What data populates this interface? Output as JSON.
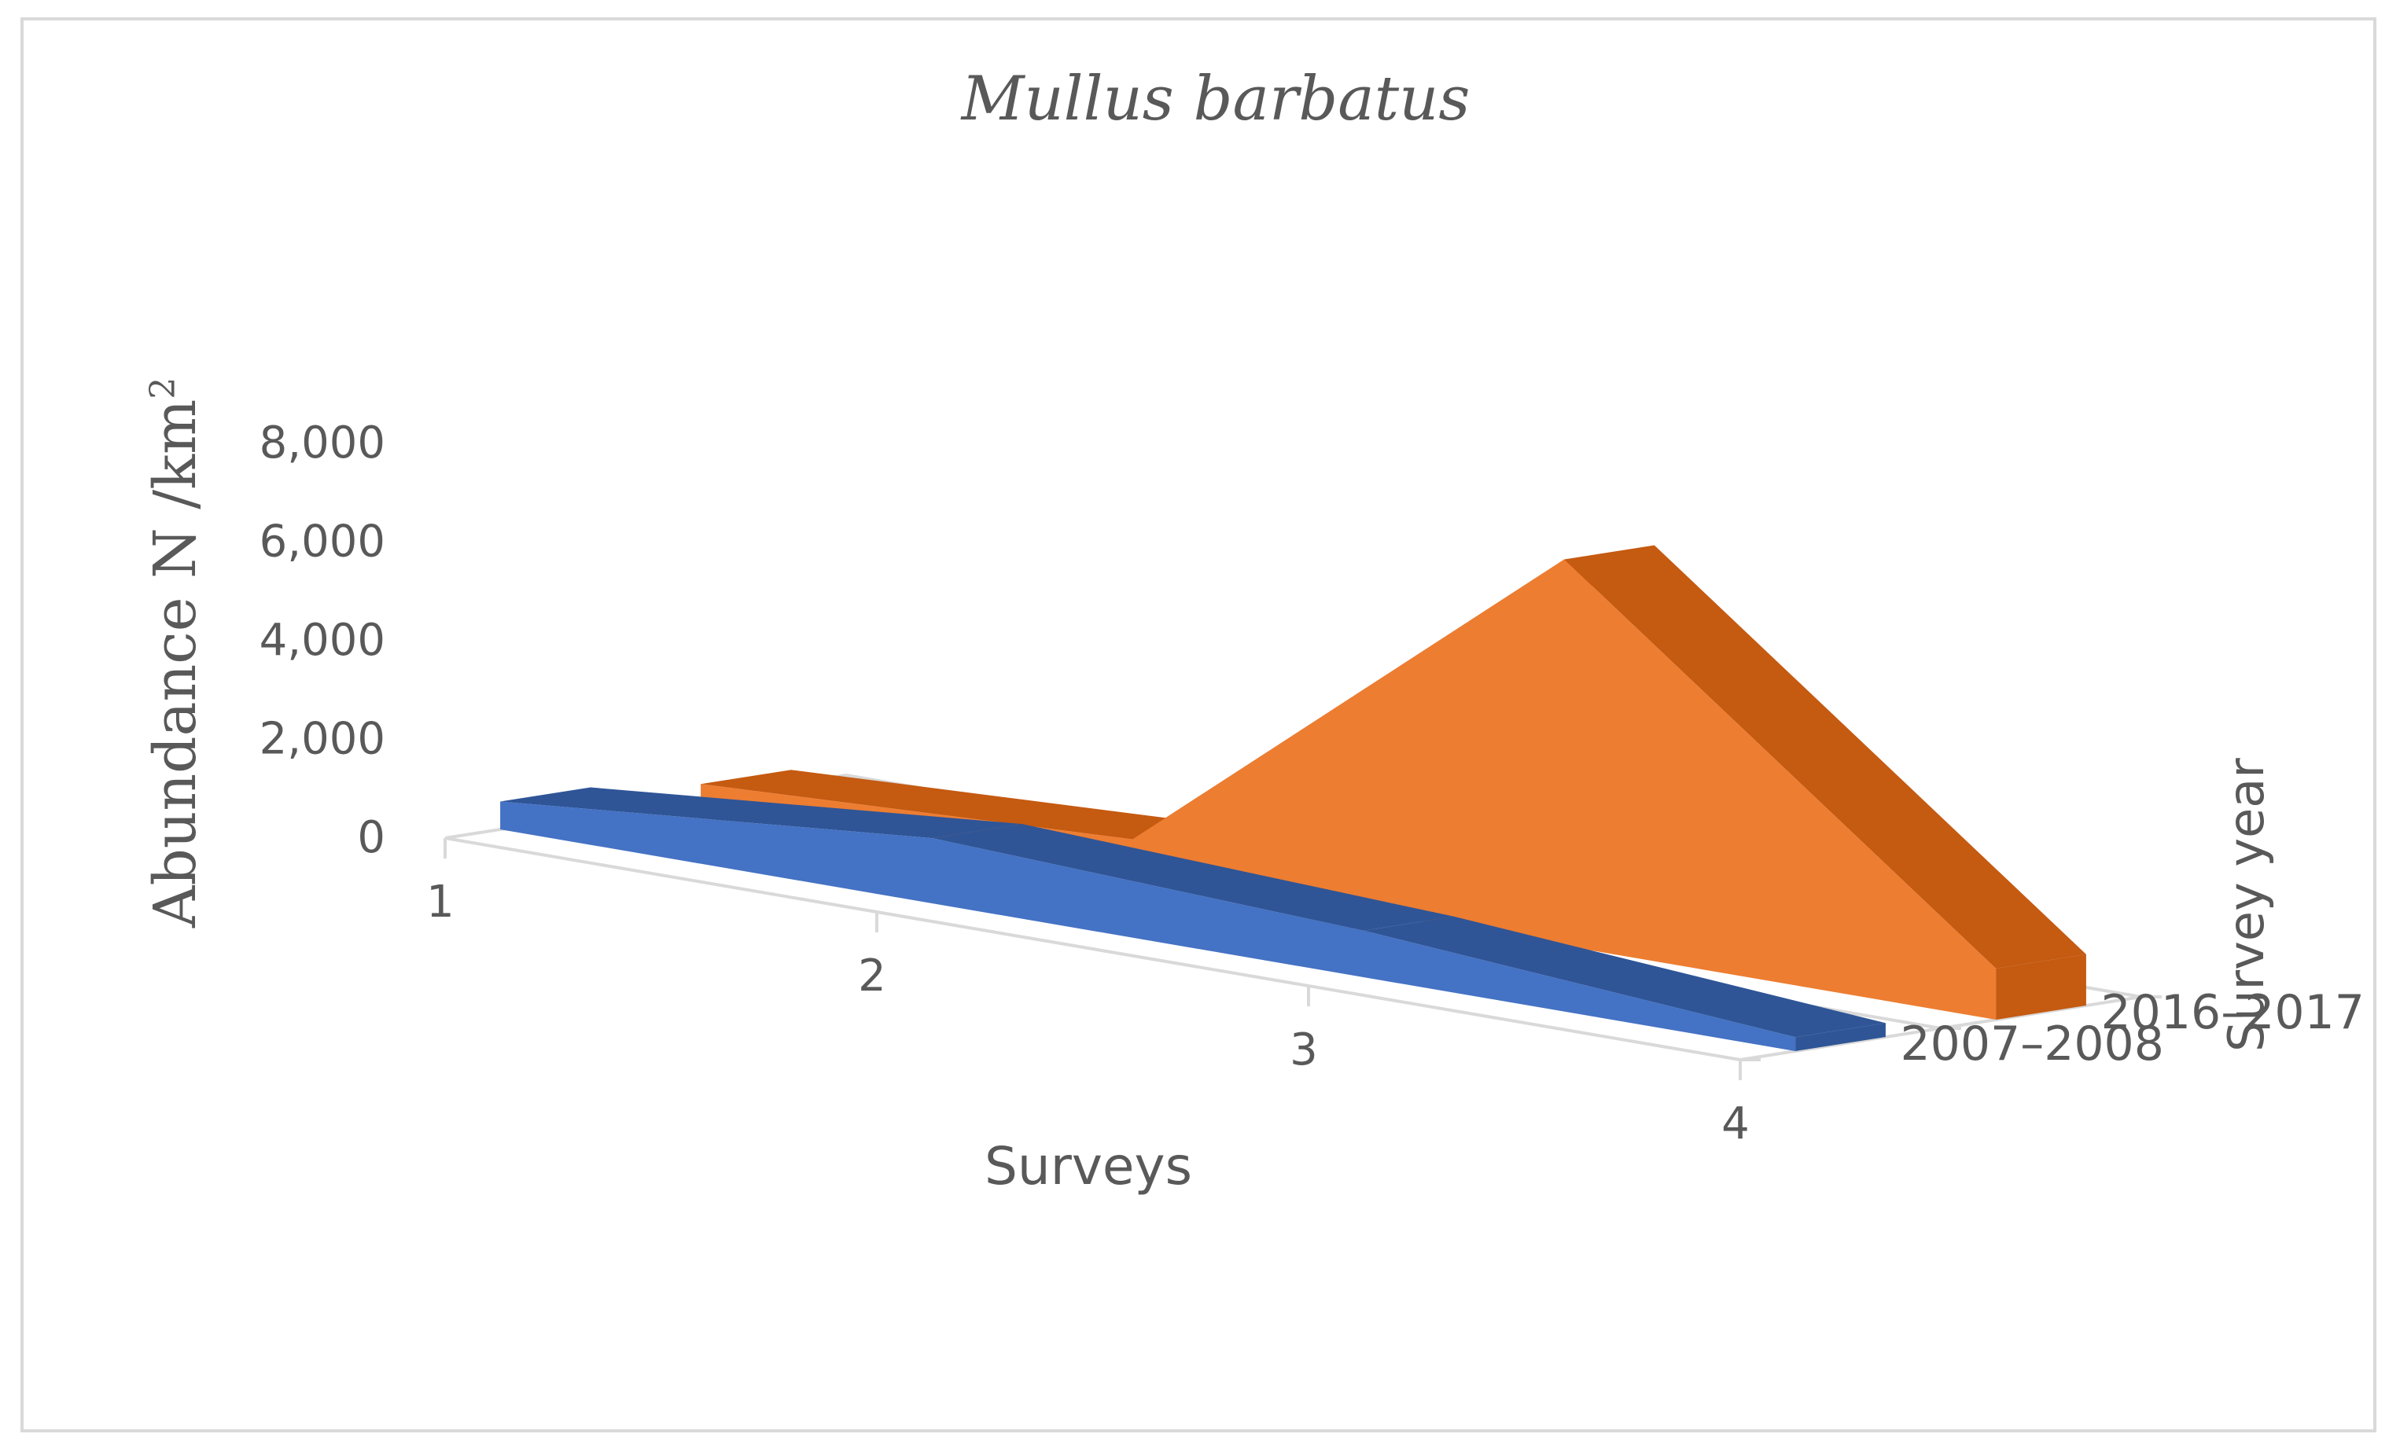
{
  "chart_data": {
    "type": "area",
    "title": "Mullus barbatus",
    "ylabel": "Abundance N /km",
    "ylabel_superscript": "2",
    "xlabel": "Surveys",
    "zlabel": "Survey year",
    "categories": [
      "1",
      "2",
      "3",
      "4"
    ],
    "yticks": [
      "0",
      "2,000",
      "4,000",
      "6,000",
      "8,000"
    ],
    "ylim": [
      0,
      8000
    ],
    "grid": false,
    "legend": "none",
    "series": [
      {
        "name": "2007–2008",
        "values": [
          600,
          1400,
          1000,
          300
        ],
        "color": "#4472c4",
        "top_color": "#2f5597"
      },
      {
        "name": "2016–2017",
        "values": [
          300,
          700,
          8300,
          1100
        ],
        "color": "#ed7d31",
        "top_color": "#c55a11"
      }
    ]
  }
}
